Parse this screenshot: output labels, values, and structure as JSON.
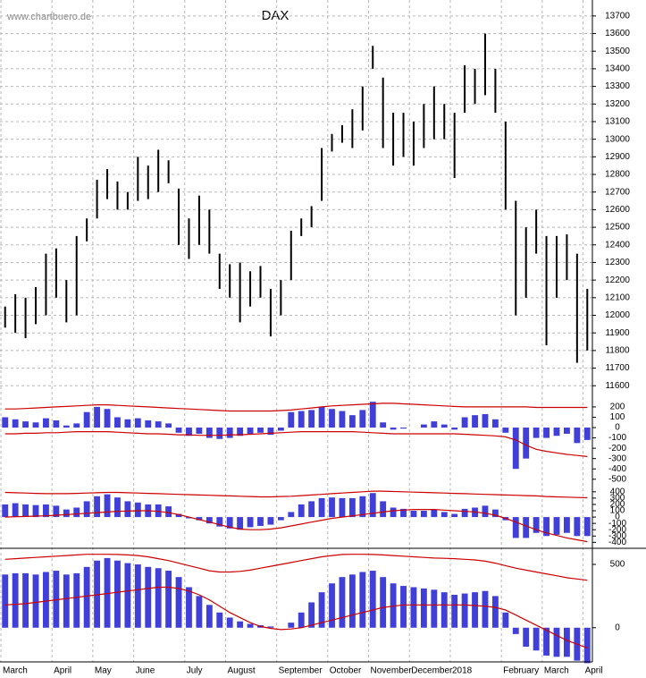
{
  "chart_data": [
    {
      "type": "hilo",
      "title": "DAX",
      "source": "www.chartbuero.de",
      "color": "#000000",
      "categories": [
        "March",
        null,
        null,
        null,
        null,
        "April",
        null,
        null,
        null,
        "May",
        null,
        null,
        null,
        "June",
        null,
        null,
        null,
        null,
        "July",
        null,
        null,
        null,
        "August",
        null,
        null,
        null,
        null,
        "September",
        null,
        null,
        null,
        null,
        "October",
        null,
        null,
        null,
        "November",
        null,
        null,
        null,
        "December",
        null,
        null,
        null,
        "2018",
        null,
        null,
        null,
        null,
        "February",
        null,
        null,
        null,
        "March",
        null,
        null,
        null,
        "April"
      ],
      "high": [
        12050,
        12120,
        12100,
        12160,
        12350,
        12380,
        12200,
        12450,
        12550,
        12770,
        12830,
        12760,
        12700,
        12900,
        12850,
        12940,
        12880,
        12720,
        12550,
        12680,
        12600,
        12350,
        12290,
        12300,
        12250,
        12280,
        12150,
        12200,
        12480,
        12550,
        12620,
        12950,
        13030,
        13080,
        13170,
        13300,
        13530,
        13350,
        13150,
        13150,
        13100,
        13200,
        13300,
        13200,
        13150,
        13420,
        13400,
        13600,
        13400,
        13100,
        12650,
        12500,
        12600,
        12450,
        12450,
        12460,
        12350,
        12150
      ],
      "low": [
        11930,
        11900,
        11870,
        11950,
        12000,
        12100,
        11960,
        12000,
        12420,
        12550,
        12660,
        12600,
        12600,
        12650,
        12660,
        12700,
        12750,
        12400,
        12320,
        12400,
        12350,
        12150,
        12100,
        11960,
        12050,
        12100,
        11880,
        12000,
        12200,
        12450,
        12500,
        12650,
        12930,
        12980,
        12950,
        13050,
        13400,
        12950,
        12850,
        12900,
        12850,
        12950,
        13000,
        13000,
        12780,
        13150,
        13200,
        13250,
        13150,
        12600,
        12000,
        12100,
        12350,
        11830,
        12100,
        12200,
        11730,
        11800
      ],
      "ylim": [
        11520,
        13750
      ],
      "yticks": [
        11600,
        11700,
        11800,
        11900,
        12000,
        12100,
        12200,
        12300,
        12400,
        12500,
        12600,
        12700,
        12800,
        12900,
        13000,
        13100,
        13200,
        13300,
        13400,
        13500,
        13600,
        13700
      ],
      "grid": true
    },
    {
      "type": "bar",
      "color": "#0000cc",
      "values": [
        100,
        80,
        60,
        50,
        90,
        70,
        20,
        40,
        150,
        200,
        180,
        100,
        80,
        90,
        70,
        60,
        40,
        -50,
        -80,
        -60,
        -100,
        -110,
        -100,
        -80,
        -60,
        -50,
        -70,
        -30,
        150,
        160,
        170,
        200,
        180,
        160,
        120,
        170,
        250,
        50,
        -20,
        -10,
        0,
        30,
        60,
        30,
        -20,
        100,
        120,
        130,
        80,
        -50,
        -400,
        -300,
        -100,
        -100,
        -80,
        -60,
        -150,
        -120
      ],
      "lines": [
        {
          "color": "#cc0000",
          "values": [
            180,
            180,
            185,
            190,
            195,
            200,
            205,
            210,
            215,
            220,
            220,
            215,
            210,
            205,
            200,
            195,
            190,
            185,
            180,
            175,
            170,
            165,
            160,
            160,
            160,
            160,
            160,
            165,
            170,
            180,
            190,
            200,
            210,
            215,
            220,
            225,
            230,
            235,
            235,
            230,
            225,
            220,
            215,
            210,
            205,
            200,
            200,
            200,
            200,
            200,
            200,
            200,
            195,
            195,
            195,
            195,
            195,
            195
          ]
        },
        {
          "color": "#cc0000",
          "values": [
            -60,
            -60,
            -55,
            -55,
            -50,
            -50,
            -45,
            -40,
            -40,
            -40,
            -40,
            -45,
            -50,
            -55,
            -60,
            -60,
            -65,
            -70,
            -70,
            -75,
            -75,
            -75,
            -70,
            -70,
            -65,
            -60,
            -55,
            -50,
            -45,
            -40,
            -40,
            -40,
            -40,
            -40,
            -40,
            -45,
            -50,
            -55,
            -60,
            -60,
            -60,
            -60,
            -60,
            -60,
            -60,
            -65,
            -70,
            -75,
            -80,
            -90,
            -120,
            -170,
            -210,
            -230,
            -245,
            -260,
            -270,
            -280
          ]
        }
      ],
      "ylim": [
        -580,
        260
      ],
      "yticks": [
        200,
        100,
        0,
        -100,
        -200,
        -300,
        -400,
        -500
      ]
    },
    {
      "type": "bar",
      "color": "#0000cc",
      "values": [
        200,
        220,
        200,
        190,
        200,
        180,
        120,
        150,
        250,
        330,
        360,
        310,
        250,
        230,
        200,
        200,
        170,
        50,
        -20,
        -50,
        -100,
        -150,
        -180,
        -200,
        -160,
        -140,
        -120,
        -50,
        80,
        200,
        250,
        300,
        310,
        300,
        300,
        330,
        380,
        250,
        150,
        130,
        100,
        100,
        120,
        80,
        50,
        130,
        150,
        180,
        120,
        -50,
        -330,
        -330,
        -250,
        -300,
        -280,
        -250,
        -300,
        -300
      ],
      "lines": [
        {
          "color": "#cc0000",
          "values": [
            390,
            385,
            380,
            375,
            370,
            370,
            370,
            375,
            380,
            385,
            390,
            390,
            385,
            380,
            375,
            370,
            365,
            360,
            355,
            350,
            345,
            340,
            335,
            330,
            325,
            320,
            320,
            325,
            330,
            340,
            350,
            360,
            370,
            380,
            390,
            400,
            410,
            410,
            405,
            400,
            395,
            390,
            385,
            380,
            375,
            370,
            365,
            360,
            355,
            350,
            345,
            340,
            335,
            325,
            320,
            315,
            310,
            305
          ]
        },
        {
          "color": "#cc0000",
          "values": [
            0,
            5,
            10,
            15,
            20,
            30,
            40,
            50,
            60,
            70,
            80,
            90,
            95,
            100,
            100,
            90,
            70,
            40,
            0,
            -40,
            -80,
            -120,
            -160,
            -190,
            -200,
            -200,
            -190,
            -170,
            -140,
            -110,
            -80,
            -50,
            -20,
            0,
            20,
            40,
            60,
            80,
            100,
            110,
            120,
            120,
            120,
            110,
            100,
            90,
            80,
            60,
            30,
            -20,
            -80,
            -140,
            -200,
            -250,
            -290,
            -330,
            -360,
            -390
          ]
        }
      ],
      "ylim": [
        -480,
        440
      ],
      "yticks": [
        400,
        300,
        200,
        100,
        0,
        -100,
        -200,
        -300,
        -400
      ]
    },
    {
      "type": "bar",
      "color": "#0000cc",
      "values": [
        420,
        430,
        430,
        420,
        440,
        450,
        420,
        430,
        480,
        530,
        550,
        530,
        510,
        500,
        480,
        470,
        450,
        400,
        320,
        250,
        180,
        120,
        80,
        50,
        30,
        20,
        10,
        0,
        40,
        120,
        200,
        280,
        350,
        400,
        420,
        440,
        450,
        400,
        350,
        330,
        320,
        310,
        300,
        280,
        260,
        270,
        280,
        290,
        250,
        120,
        -50,
        -150,
        -180,
        -220,
        -230,
        -230,
        -260,
        -280
      ],
      "lines": [
        {
          "color": "#cc0000",
          "values": [
            540,
            545,
            550,
            555,
            560,
            565,
            570,
            575,
            580,
            580,
            580,
            578,
            575,
            570,
            560,
            545,
            530,
            510,
            490,
            470,
            450,
            440,
            440,
            445,
            455,
            470,
            485,
            500,
            515,
            530,
            545,
            560,
            570,
            578,
            580,
            580,
            578,
            575,
            570,
            565,
            560,
            555,
            550,
            548,
            545,
            540,
            535,
            525,
            510,
            490,
            470,
            455,
            440,
            425,
            410,
            395,
            385,
            375
          ]
        },
        {
          "color": "#cc0000",
          "values": [
            180,
            185,
            190,
            200,
            210,
            220,
            230,
            240,
            250,
            260,
            270,
            280,
            290,
            300,
            310,
            320,
            320,
            310,
            290,
            260,
            220,
            170,
            120,
            80,
            40,
            10,
            -5,
            -15,
            -10,
            0,
            20,
            40,
            60,
            80,
            100,
            120,
            140,
            160,
            170,
            180,
            180,
            180,
            180,
            180,
            180,
            180,
            175,
            170,
            160,
            140,
            100,
            60,
            20,
            -20,
            -60,
            -100,
            -130,
            -160
          ]
        }
      ],
      "ylim": [
        -270,
        620
      ],
      "yticks": [
        500,
        0
      ]
    }
  ]
}
